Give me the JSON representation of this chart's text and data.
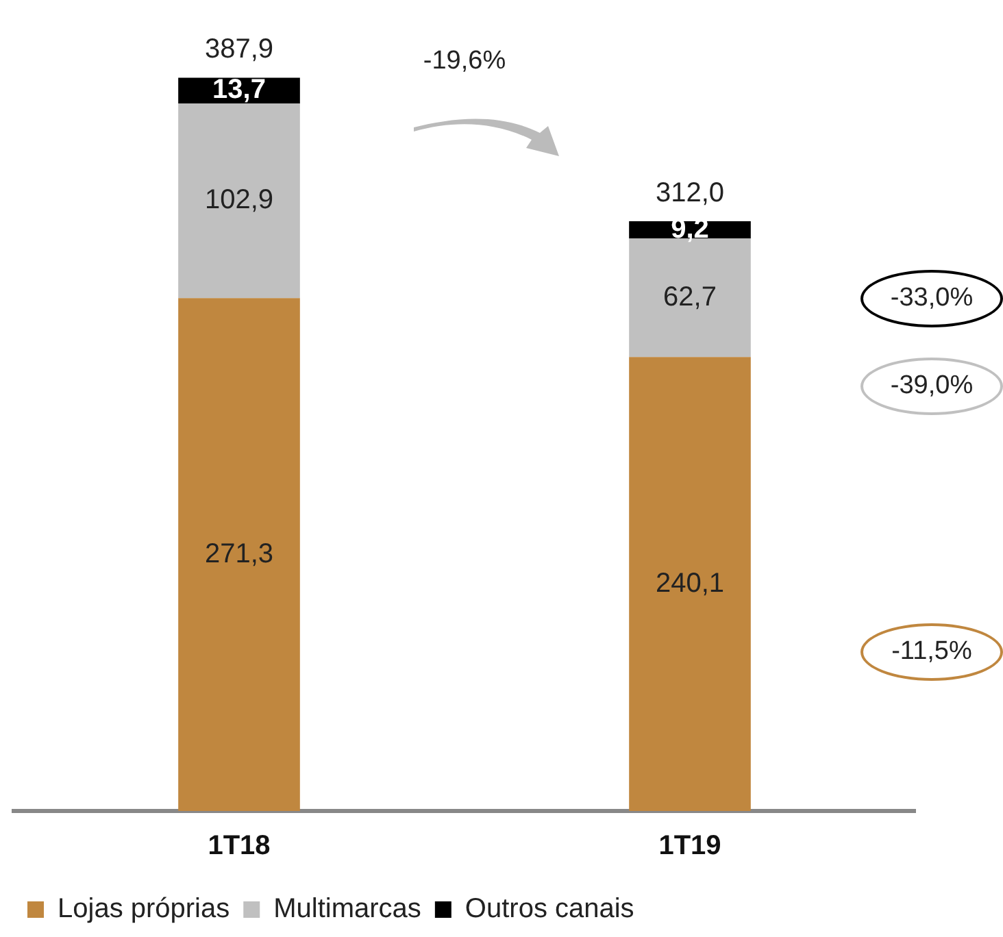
{
  "chart_data": {
    "type": "bar",
    "stacked": true,
    "categories": [
      "1T18",
      "1T19"
    ],
    "series": [
      {
        "name": "Lojas próprias",
        "color": "#c0873f",
        "values": [
          271.3,
          240.1
        ],
        "value_labels": [
          "271,3",
          "240,1"
        ]
      },
      {
        "name": "Multimarcas",
        "color": "#c0c0c0",
        "values": [
          102.9,
          62.7
        ],
        "value_labels": [
          "102,9",
          "62,7"
        ]
      },
      {
        "name": "Outros canais",
        "color": "#000000",
        "values": [
          13.7,
          9.2
        ],
        "value_labels": [
          "13,7",
          "9,2"
        ]
      }
    ],
    "totals": [
      "387,9",
      "312,0"
    ],
    "annotations": [
      "-19,6%",
      "-33,0%",
      "-39,0%",
      "-11,5%"
    ],
    "legend": "bottom left",
    "grid": false
  }
}
